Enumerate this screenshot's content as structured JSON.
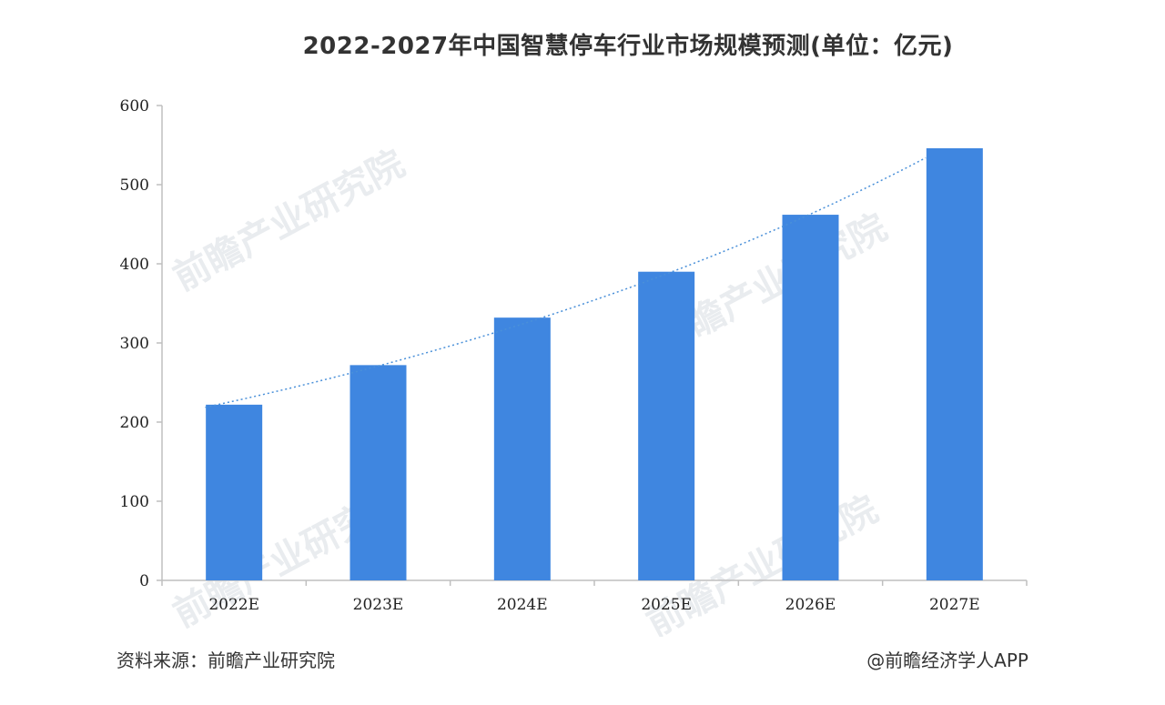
{
  "title": "2022-2027年中国智慧停车行业市场规模预测(单位：亿元)",
  "source_text": "资料来源：前瞻产业研究院",
  "credit_text": "@前瞻经济学人APP",
  "watermark_text": "前瞻产业研究院",
  "chart_data": {
    "type": "bar",
    "title": "2022-2027年中国智慧停车行业市场规模预测(单位：亿元)",
    "categories": [
      "2022E",
      "2023E",
      "2024E",
      "2025E",
      "2026E",
      "2027E"
    ],
    "values": [
      222,
      272,
      332,
      390,
      462,
      546
    ],
    "ylim": [
      0,
      600
    ],
    "yticks": [
      0,
      100,
      200,
      300,
      400,
      500,
      600
    ],
    "xlabel": "",
    "ylabel": "",
    "grid": false,
    "legend": "none",
    "trendline": {
      "style": "dotted",
      "type": "exponential"
    },
    "bar_color": "#3f86e0",
    "trend_color": "#4a90d9"
  }
}
